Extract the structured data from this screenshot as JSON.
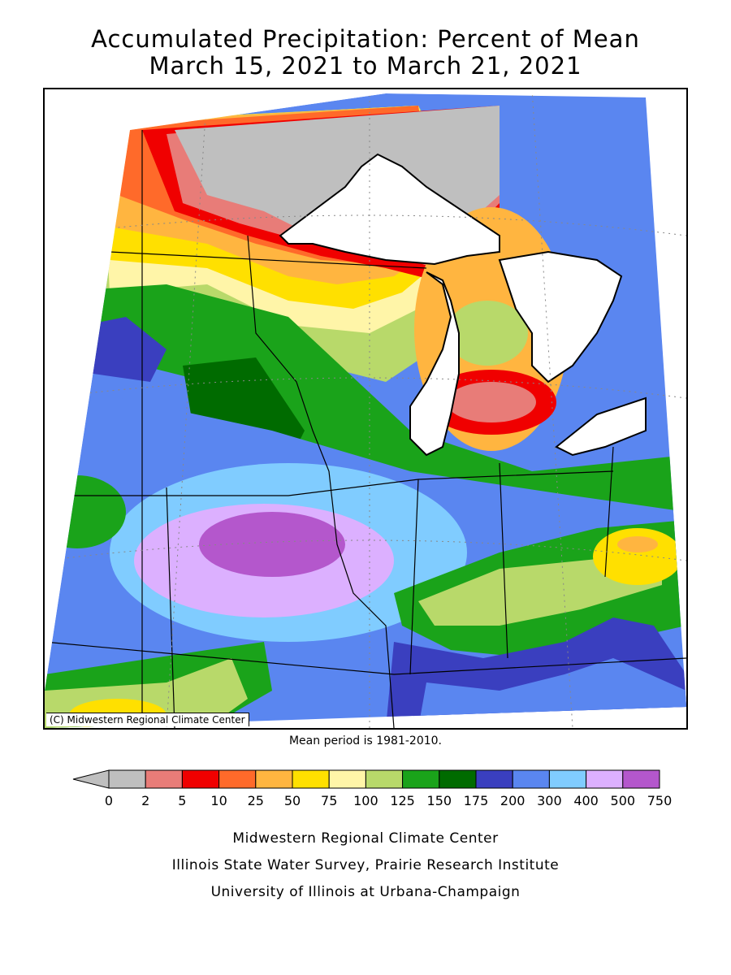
{
  "title": {
    "line1": "Accumulated Precipitation: Percent of Mean",
    "line2": "March 15, 2021 to March 21, 2021"
  },
  "map": {
    "copyright": "(C) Midwestern Regional Climate Center"
  },
  "mean_period": "Mean period is 1981-2010.",
  "legend": {
    "tick_labels": [
      "0",
      "2",
      "5",
      "10",
      "25",
      "50",
      "75",
      "100",
      "125",
      "150",
      "175",
      "200",
      "300",
      "400",
      "500",
      "750"
    ],
    "colors": [
      "#bfbfbf",
      "#e87c78",
      "#f00000",
      "#ff6a2a",
      "#ffb540",
      "#ffe000",
      "#fff5a8",
      "#b8d96a",
      "#1aa31a",
      "#006b00",
      "#3a3fbf",
      "#5a86f0",
      "#80ccff",
      "#dcb0ff",
      "#b457cc"
    ]
  },
  "credits": {
    "line1": "Midwestern Regional Climate Center",
    "line2": "Illinois State Water Survey, Prairie Research Institute",
    "line3": "University of Illinois at Urbana-Champaign"
  }
}
